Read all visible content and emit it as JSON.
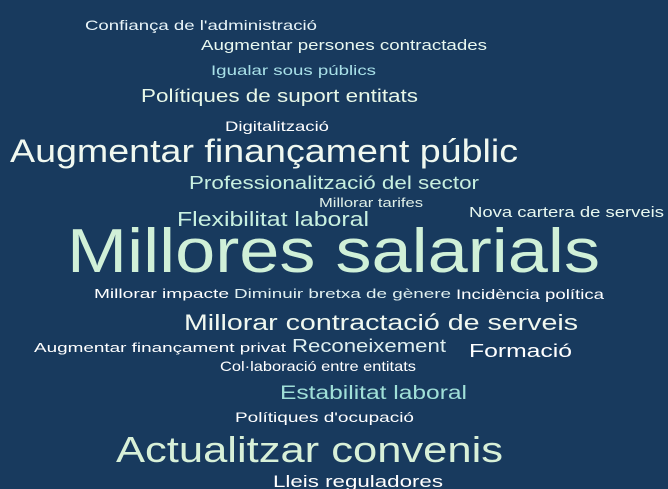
{
  "words": [
    "Confiança de l'administració",
    "Augmentar persones contractades",
    "Igualar sous públics",
    "Polítiques de suport entitats",
    "Digitalització",
    "Augmentar finançament públic",
    "Professionalització del sector",
    "Millorar tarifes",
    "Nova cartera de serveis",
    "Flexibilitat laboral",
    "Millores salarials",
    "Millorar impacte",
    "Diminuir bretxa de gènere",
    "Incidència política",
    "Millorar contractació de serveis",
    "Augmentar finançament privat",
    "Reconeixement",
    "Formació",
    "Col·laboració entre entitats",
    "Estabilitat laboral",
    "Polítiques d'ocupació",
    "Actualitzar convenis",
    "Lleis reguladores"
  ]
}
